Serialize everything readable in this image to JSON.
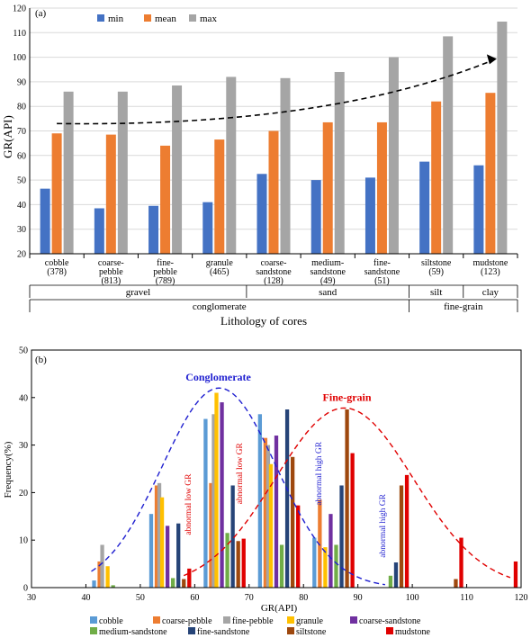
{
  "colors": {
    "min": "#4472c4",
    "mean": "#ed7d31",
    "max": "#a5a5a5",
    "cobble": "#5b9bd5",
    "coarse_pebble": "#ed7d31",
    "fine_pebble": "#a5a5a5",
    "granule": "#ffc000",
    "coarse_sandstone": "#7030a0",
    "medium_sandstone": "#70ad47",
    "fine_sandstone": "#264478",
    "siltstone": "#9e480e",
    "mudstone": "#e00000",
    "conglomerate_curve": "#1f1fd0",
    "finegrain_curve": "#e00000"
  },
  "chart_data": [
    {
      "panel": "(a)",
      "type": "bar",
      "ylabel": "GR(API)",
      "xlabel": "Lithology of cores",
      "ylim": [
        20,
        120
      ],
      "yticks": [
        20,
        30,
        40,
        50,
        60,
        70,
        80,
        90,
        100,
        110,
        120
      ],
      "legend_position": "top-left",
      "categories": [
        [
          "cobble",
          "(378)"
        ],
        [
          "coarse-",
          "pebble",
          "(813)"
        ],
        [
          "fine-",
          "pebble",
          "(789)"
        ],
        [
          "granule",
          "(465)"
        ],
        [
          "coarse-",
          "sandstone",
          "(128)"
        ],
        [
          "medium-",
          "sandstone",
          "(49)"
        ],
        [
          "fine-",
          "sandstone",
          "(51)"
        ],
        [
          "siltstone",
          "(59)"
        ],
        [
          "mudstone",
          "(123)"
        ]
      ],
      "series": [
        {
          "name": "min",
          "values": [
            46.5,
            38.5,
            39.5,
            41,
            52.5,
            50,
            51,
            57.5,
            56
          ]
        },
        {
          "name": "mean",
          "values": [
            69,
            68.5,
            64,
            66.5,
            70,
            73.5,
            73.5,
            82,
            85.5
          ]
        },
        {
          "name": "max",
          "values": [
            86,
            86,
            88.5,
            92,
            91.5,
            94,
            100,
            108.5,
            114.5
          ]
        }
      ],
      "trend": {
        "from": [
          0,
          73
        ],
        "to": [
          8,
          99
        ]
      },
      "groups": {
        "level1": [
          {
            "label": "gravel",
            "span": [
              0,
              3
            ]
          },
          {
            "label": "sand",
            "span": [
              4,
              6
            ]
          },
          {
            "label": "silt",
            "span": [
              7,
              7
            ]
          },
          {
            "label": "clay",
            "span": [
              8,
              8
            ]
          }
        ],
        "level2": [
          {
            "label": "conglomerate",
            "span": [
              0,
              6
            ]
          },
          {
            "label": "fine-grain",
            "span": [
              7,
              8
            ]
          }
        ]
      }
    },
    {
      "panel": "(b)",
      "type": "bar",
      "xlabel": "GR(API)",
      "ylabel": "Frequency(%)",
      "xlim": [
        30,
        120
      ],
      "ylim": [
        0,
        50
      ],
      "xticks": [
        30,
        40,
        50,
        60,
        70,
        80,
        90,
        100,
        110,
        120
      ],
      "yticks": [
        0,
        10,
        20,
        30,
        40,
        50
      ],
      "series": [
        {
          "name": "cobble",
          "color_key": "cobble",
          "points": [
            [
              41.5,
              1.5
            ],
            [
              52,
              15.5
            ],
            [
              62,
              35.5
            ],
            [
              72,
              36.5
            ],
            [
              82,
              10.5
            ]
          ]
        },
        {
          "name": "coarse-pebble",
          "color_key": "coarse_pebble",
          "points": [
            [
              42.5,
              5.5
            ],
            [
              53,
              21.5
            ],
            [
              63,
              22
            ],
            [
              73,
              31.5
            ],
            [
              83,
              18.5
            ]
          ]
        },
        {
          "name": "fine-pebble",
          "color_key": "fine_pebble",
          "points": [
            [
              43,
              9
            ],
            [
              53.5,
              22
            ],
            [
              63.5,
              36.5
            ],
            [
              73.5,
              30
            ]
          ]
        },
        {
          "name": "granule",
          "color_key": "granule",
          "points": [
            [
              44,
              4.5
            ],
            [
              54,
              19
            ],
            [
              64,
              41
            ],
            [
              74,
              26
            ],
            [
              84,
              8.5
            ]
          ]
        },
        {
          "name": "coarse-sandstone",
          "color_key": "coarse_sandstone",
          "points": [
            [
              55,
              13
            ],
            [
              65,
              39
            ],
            [
              75,
              32
            ],
            [
              85,
              15.5
            ]
          ]
        },
        {
          "name": "medium-sandstone",
          "color_key": "medium_sandstone",
          "points": [
            [
              45,
              0.5
            ],
            [
              56,
              2
            ],
            [
              66,
              11.5
            ],
            [
              76,
              9
            ],
            [
              86,
              9
            ],
            [
              96,
              2.5
            ]
          ]
        },
        {
          "name": "fine-sandstone",
          "color_key": "fine_sandstone",
          "points": [
            [
              57,
              13.5
            ],
            [
              67,
              21.5
            ],
            [
              77,
              37.5
            ],
            [
              87,
              21.5
            ],
            [
              97,
              5.3
            ]
          ]
        },
        {
          "name": "siltstone",
          "color_key": "siltstone",
          "points": [
            [
              58,
              1.8
            ],
            [
              68,
              9.8
            ],
            [
              78,
              27.5
            ],
            [
              88,
              37.5
            ],
            [
              98,
              21.5
            ],
            [
              108,
              1.8
            ]
          ]
        },
        {
          "name": "mudstone",
          "color_key": "mudstone",
          "points": [
            [
              59,
              4
            ],
            [
              69,
              10.3
            ],
            [
              79,
              17.3
            ],
            [
              89,
              28.3
            ],
            [
              99,
              23.7
            ],
            [
              109,
              10.5
            ],
            [
              119,
              5.5
            ]
          ]
        }
      ],
      "curves": [
        {
          "name": "Conglomerate",
          "color_key": "conglomerate_curve",
          "mean": 64.5,
          "sd": 10.5,
          "peak": 42,
          "range": [
            41,
            95
          ]
        },
        {
          "name": "Fine-grain",
          "color_key": "finegrain_curve",
          "mean": 87.5,
          "sd": 12.7,
          "peak": 37.8,
          "range": [
            58,
            118
          ]
        }
      ],
      "annotations": [
        {
          "text": "abnormal low GR",
          "x": 59.3,
          "y": 17.5,
          "color_key": "finegrain_curve"
        },
        {
          "text": "abnormal low GR",
          "x": 68.7,
          "y": 24,
          "color_key": "finegrain_curve"
        },
        {
          "text": "abnormal high GR",
          "x": 83.3,
          "y": 24,
          "color_key": "conglomerate_curve"
        },
        {
          "text": "abnormal high GR",
          "x": 95,
          "y": 13,
          "color_key": "conglomerate_curve"
        }
      ],
      "legend_position": "bottom"
    }
  ]
}
